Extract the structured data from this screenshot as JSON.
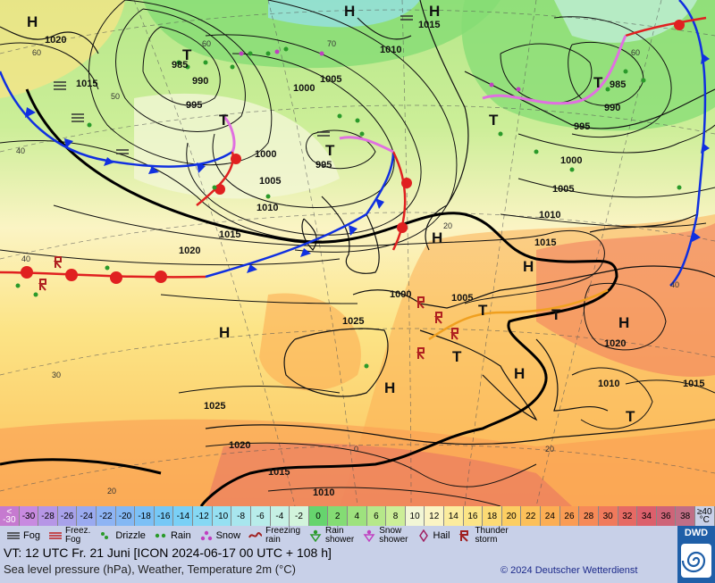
{
  "map": {
    "pressure_labels": [
      {
        "t": "1020"
      },
      {
        "t": "1015"
      },
      {
        "t": "985"
      },
      {
        "t": "990"
      },
      {
        "t": "995"
      },
      {
        "t": "1000"
      },
      {
        "t": "1005"
      },
      {
        "t": "1010"
      },
      {
        "t": "1015"
      },
      {
        "t": "1020"
      },
      {
        "t": "1025"
      },
      {
        "t": "1025"
      },
      {
        "t": "1020"
      },
      {
        "t": "1015"
      },
      {
        "t": "1010"
      },
      {
        "t": "1005"
      },
      {
        "t": "1000"
      },
      {
        "t": "995"
      },
      {
        "t": "1000"
      },
      {
        "t": "1005"
      },
      {
        "t": "1010"
      },
      {
        "t": "1015"
      },
      {
        "t": "1010"
      },
      {
        "t": "1015"
      },
      {
        "t": "985"
      },
      {
        "t": "990"
      },
      {
        "t": "995"
      },
      {
        "t": "1000"
      },
      {
        "t": "1005"
      },
      {
        "t": "1010"
      },
      {
        "t": "1015"
      },
      {
        "t": "1020"
      },
      {
        "t": "1020"
      },
      {
        "t": "1010"
      },
      {
        "t": "1005"
      }
    ],
    "centers": [
      {
        "t": "H"
      },
      {
        "t": "H"
      },
      {
        "t": "H"
      },
      {
        "t": "T"
      },
      {
        "t": "T"
      },
      {
        "t": "T"
      },
      {
        "t": "H"
      },
      {
        "t": "H"
      },
      {
        "t": "H"
      },
      {
        "t": "T"
      },
      {
        "t": "T"
      },
      {
        "t": "T"
      },
      {
        "t": "H"
      },
      {
        "t": "H"
      },
      {
        "t": "T"
      },
      {
        "t": "T"
      },
      {
        "t": "T"
      },
      {
        "t": "H"
      }
    ],
    "lat_labels": [
      {
        "t": "60"
      },
      {
        "t": "50"
      },
      {
        "t": "40"
      },
      {
        "t": "40"
      },
      {
        "t": "30"
      },
      {
        "t": "20"
      },
      {
        "t": "60"
      },
      {
        "t": "70"
      },
      {
        "t": "60"
      },
      {
        "t": "40"
      },
      {
        "t": "20"
      },
      {
        "t": "0"
      },
      {
        "t": "20"
      }
    ]
  },
  "scale": {
    "cells": [
      {
        "label": "<\n-30",
        "color": "#c67ad0"
      },
      {
        "label": "-30",
        "color": "#c88ae0"
      },
      {
        "label": "-28",
        "color": "#b696e6"
      },
      {
        "label": "-26",
        "color": "#a8a2ea"
      },
      {
        "label": "-24",
        "color": "#9aaaf0"
      },
      {
        "label": "-22",
        "color": "#8eb4f4"
      },
      {
        "label": "-20",
        "color": "#84b8f4"
      },
      {
        "label": "-18",
        "color": "#7cc0f6"
      },
      {
        "label": "-16",
        "color": "#76c8f6"
      },
      {
        "label": "-14",
        "color": "#7ad0f6"
      },
      {
        "label": "-12",
        "color": "#86d8f4"
      },
      {
        "label": "-10",
        "color": "#96e0f2"
      },
      {
        "label": "-8",
        "color": "#a8e6ee"
      },
      {
        "label": "-6",
        "color": "#b8ecea"
      },
      {
        "label": "-4",
        "color": "#c6f0e4"
      },
      {
        "label": "-2",
        "color": "#d2f4dc"
      },
      {
        "label": "0",
        "color": "#66d46e"
      },
      {
        "label": "2",
        "color": "#84dc74"
      },
      {
        "label": "4",
        "color": "#9ee27e"
      },
      {
        "label": "6",
        "color": "#b6e88a"
      },
      {
        "label": "8",
        "color": "#ccee98"
      },
      {
        "label": "10",
        "color": "#f2f6d6"
      },
      {
        "label": "12",
        "color": "#fbf4c4"
      },
      {
        "label": "14",
        "color": "#fcec9e"
      },
      {
        "label": "16",
        "color": "#fce486"
      },
      {
        "label": "18",
        "color": "#fcda74"
      },
      {
        "label": "20",
        "color": "#fcce62"
      },
      {
        "label": "22",
        "color": "#fcc05a"
      },
      {
        "label": "24",
        "color": "#fcae54"
      },
      {
        "label": "26",
        "color": "#fa9c54"
      },
      {
        "label": "28",
        "color": "#f68a58"
      },
      {
        "label": "30",
        "color": "#f07a5c"
      },
      {
        "label": "32",
        "color": "#e66a64"
      },
      {
        "label": "34",
        "color": "#dc606c"
      },
      {
        "label": "36",
        "color": "#ce6478"
      },
      {
        "label": "38",
        "color": "#c06e86"
      },
      {
        "label": "≥40\n°C",
        "color": "#c8d0e8"
      }
    ]
  },
  "legend": {
    "fog": "Fog",
    "freezing_fog": "Freez.\nFog",
    "drizzle": "Drizzle",
    "rain": "Rain",
    "snow": "Snow",
    "freezing_rain": "Freezing\nrain",
    "rain_shower": "Rain\nshower",
    "snow_shower": "Snow\nshower",
    "hail": "Hail",
    "thunderstorm": "Thunder\nstorm"
  },
  "info": {
    "valid_time": "VT: 12 UTC Fr.  21 Juni [ICON 2024-06-17  00 UTC + 108 h]",
    "subtitle": "Sea level pressure (hPa), Weather, Temperature 2m (°C)",
    "copyright": "© 2024 Deutscher Wetterdienst",
    "logo": "DWD"
  },
  "colors": {
    "cold_front": "#1030e0",
    "warm_front": "#e02020",
    "occlusion": "#e070e0",
    "trough": "#f0a020"
  }
}
